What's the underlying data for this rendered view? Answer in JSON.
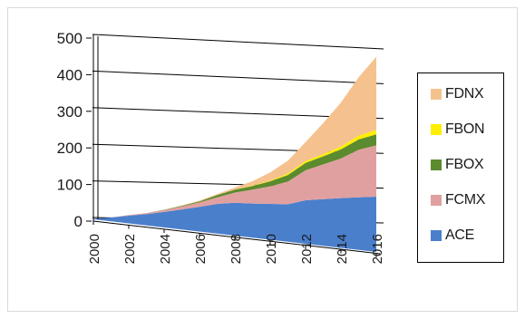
{
  "chart_data": {
    "type": "area",
    "stacked": true,
    "style": "3d",
    "x": [
      2000,
      2001,
      2002,
      2003,
      2004,
      2005,
      2006,
      2007,
      2008,
      2009,
      2010,
      2011,
      2012,
      2013,
      2014,
      2015,
      2016
    ],
    "x_tick_labels": [
      "2000",
      "2002",
      "2004",
      "2006",
      "2008",
      "2010",
      "2012",
      "2014",
      "2016"
    ],
    "y_tick_labels": [
      "0",
      "100",
      "200",
      "300",
      "400",
      "500"
    ],
    "ylim": [
      0,
      500
    ],
    "grid": true,
    "legend_position": "right",
    "series": [
      {
        "name": "ACE",
        "color": "#4a7fcc",
        "values": [
          2,
          5,
          10,
          14,
          20,
          27,
          34,
          42,
          45,
          43,
          42,
          41,
          52,
          55,
          58,
          60,
          62
        ]
      },
      {
        "name": "FCMX",
        "color": "#e0a0a0",
        "values": [
          0,
          0,
          2,
          3,
          5,
          8,
          12,
          18,
          28,
          38,
          48,
          62,
          82,
          95,
          108,
          130,
          140
        ]
      },
      {
        "name": "FBOX",
        "color": "#5c8a2e",
        "values": [
          0,
          0,
          0,
          0,
          1,
          2,
          3,
          6,
          8,
          10,
          14,
          18,
          20,
          22,
          25,
          28,
          30
        ]
      },
      {
        "name": "FBON",
        "color": "#ffee00",
        "values": [
          0,
          0,
          0,
          0,
          0,
          0,
          0,
          0,
          0,
          1,
          2,
          4,
          5,
          6,
          8,
          10,
          12
        ]
      },
      {
        "name": "FDNX",
        "color": "#f5c28f",
        "values": [
          0,
          0,
          0,
          0,
          0,
          1,
          2,
          3,
          6,
          12,
          22,
          35,
          52,
          85,
          120,
          160,
          200
        ]
      }
    ],
    "legend_order": [
      "FDNX",
      "FBON",
      "FBOX",
      "FCMX",
      "ACE"
    ]
  }
}
